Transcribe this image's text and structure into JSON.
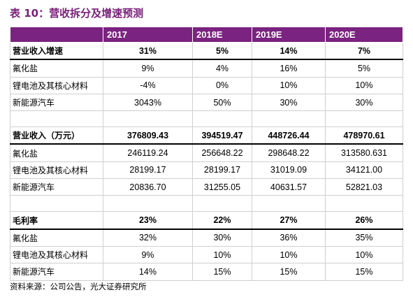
{
  "title": "表 10：营收拆分及增速预测",
  "columns": [
    "",
    "2017",
    "2018E",
    "2019E",
    "2020E"
  ],
  "sections": [
    {
      "heading": {
        "label": "营业收入增速",
        "values": [
          "31%",
          "5%",
          "14%",
          "7%"
        ]
      },
      "rows": [
        {
          "label": "氟化盐",
          "values": [
            "9%",
            "4%",
            "16%",
            "5%"
          ]
        },
        {
          "label": "锂电池及其核心材料",
          "values": [
            "-4%",
            "0%",
            "10%",
            "10%"
          ]
        },
        {
          "label": "新能源汽车",
          "values": [
            "3043%",
            "50%",
            "30%",
            "30%"
          ]
        }
      ]
    },
    {
      "heading": {
        "label": "营业收入（万元）",
        "values": [
          "376809.43",
          "394519.47",
          "448726.44",
          "478970.61"
        ]
      },
      "rows": [
        {
          "label": "氟化盐",
          "values": [
            "246119.24",
            "256648.22",
            "298648.22",
            "313580.631"
          ]
        },
        {
          "label": "锂电池及其核心材料",
          "values": [
            "28199.17",
            "28199.17",
            "31019.09",
            "34121.00"
          ]
        },
        {
          "label": "新能源汽车",
          "values": [
            "20836.70",
            "31255.05",
            "40631.57",
            "52821.03"
          ]
        }
      ]
    },
    {
      "heading": {
        "label": "毛利率",
        "values": [
          "23%",
          "22%",
          "27%",
          "26%"
        ]
      },
      "rows": [
        {
          "label": "氟化盐",
          "values": [
            "32%",
            "30%",
            "36%",
            "35%"
          ]
        },
        {
          "label": "锂电池及其核心材料",
          "values": [
            "9%",
            "10%",
            "10%",
            "10%"
          ]
        },
        {
          "label": "新能源汽车",
          "values": [
            "14%",
            "15%",
            "15%",
            "15%"
          ]
        }
      ]
    }
  ],
  "source": "资料来源：公司公告，光大证券研究所",
  "colors": {
    "header_bg": "#7b2380",
    "title": "#7a1f7a"
  }
}
